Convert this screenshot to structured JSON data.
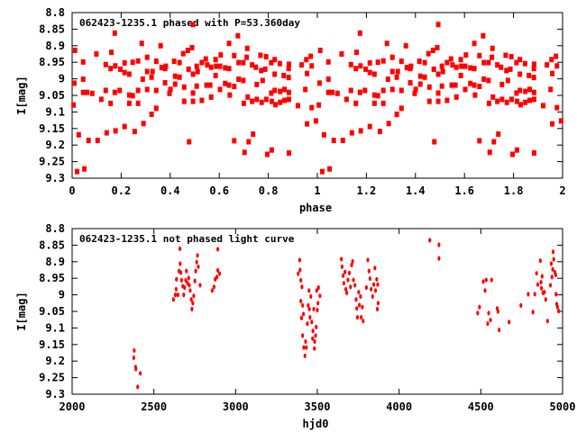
{
  "chart_data": [
    {
      "type": "scatter",
      "title": "062423-1235.1 phased with P=53.360day",
      "xlabel": "phase",
      "ylabel": "I[mag]",
      "xlim": [
        0,
        2
      ],
      "ylim": [
        8.8,
        9.3
      ],
      "y_inverted": true,
      "x_ticks": [
        "0",
        "0.2",
        "0.4",
        "0.6",
        "0.8",
        "1",
        "1.2",
        "1.4",
        "1.6",
        "1.8",
        "2"
      ],
      "y_ticks": [
        "8.8",
        "8.85",
        "8.9",
        "8.95",
        "9",
        "9.05",
        "9.1",
        "9.15",
        "9.2",
        "9.25",
        "9.3"
      ],
      "marker_color": "#ff0000",
      "phase_repeated_twice": true,
      "points": [
        [
          0.009,
          9.013
        ],
        [
          0.012,
          8.914
        ],
        [
          0.006,
          9.079
        ],
        [
          0.027,
          9.169
        ],
        [
          0.045,
          8.949
        ],
        [
          0.045,
          9.001
        ],
        [
          0.045,
          9.041
        ],
        [
          0.061,
          9.041
        ],
        [
          0.067,
          9.186
        ],
        [
          0.082,
          9.044
        ],
        [
          0.099,
          8.925
        ],
        [
          0.104,
          9.186
        ],
        [
          0.119,
          9.062
        ],
        [
          0.137,
          8.957
        ],
        [
          0.137,
          9.035
        ],
        [
          0.141,
          9.163
        ],
        [
          0.157,
          8.969
        ],
        [
          0.157,
          9.074
        ],
        [
          0.16,
          8.92
        ],
        [
          0.174,
          8.862
        ],
        [
          0.176,
          8.961
        ],
        [
          0.174,
          9.041
        ],
        [
          0.177,
          9.157
        ],
        [
          0.194,
          9.035
        ],
        [
          0.197,
          8.971
        ],
        [
          0.214,
          8.952
        ],
        [
          0.214,
          8.981
        ],
        [
          0.214,
          9.144
        ],
        [
          0.233,
          8.986
        ],
        [
          0.233,
          9.049
        ],
        [
          0.233,
          9.074
        ],
        [
          0.247,
          9.051
        ],
        [
          0.247,
          8.95
        ],
        [
          0.255,
          9.159
        ],
        [
          0.269,
          8.946
        ],
        [
          0.269,
          9.035
        ],
        [
          0.269,
          9.074
        ],
        [
          0.284,
          8.893
        ],
        [
          0.288,
          9.001
        ],
        [
          0.291,
          9.135
        ],
        [
          0.306,
          8.935
        ],
        [
          0.306,
          8.978
        ],
        [
          0.306,
          9.032
        ],
        [
          0.324,
          9.107
        ],
        [
          0.324,
          8.995
        ],
        [
          0.328,
          8.978
        ],
        [
          0.343,
          8.947
        ],
        [
          0.343,
          9.035
        ],
        [
          0.343,
          9.089
        ],
        [
          0.361,
          8.9
        ],
        [
          0.365,
          8.966
        ],
        [
          0.379,
          8.969
        ],
        [
          0.382,
          8.962
        ],
        [
          0.379,
          9.012
        ],
        [
          0.397,
          9.044
        ],
        [
          0.401,
          9.032
        ],
        [
          0.416,
          8.947
        ],
        [
          0.42,
          8.992
        ],
        [
          0.42,
          9.016
        ],
        [
          0.438,
          8.951
        ],
        [
          0.438,
          8.995
        ],
        [
          0.453,
          8.924
        ],
        [
          0.457,
          9.025
        ],
        [
          0.457,
          9.068
        ],
        [
          0.472,
          8.914
        ],
        [
          0.475,
          8.971
        ],
        [
          0.477,
          9.19
        ],
        [
          0.489,
          8.906
        ],
        [
          0.493,
          8.836
        ],
        [
          0.493,
          8.986
        ],
        [
          0.493,
          9.043
        ],
        [
          0.493,
          9.068
        ],
        [
          0.508,
          8.962
        ],
        [
          0.508,
          9.022
        ],
        [
          0.512,
          8.978
        ],
        [
          0.529,
          8.951
        ],
        [
          0.529,
          9.065
        ],
        [
          0.545,
          8.94
        ],
        [
          0.548,
          9.019
        ],
        [
          0.551,
          8.958
        ],
        [
          0.563,
          9.019
        ],
        [
          0.567,
          8.965
        ],
        [
          0.567,
          9.055
        ],
        [
          0.585,
          8.942
        ],
        [
          0.585,
          8.99
        ],
        [
          0.587,
          8.962
        ],
        [
          0.603,
          8.962
        ],
        [
          0.603,
          9.032
        ],
        [
          0.606,
          8.928
        ],
        [
          0.624,
          8.967
        ],
        [
          0.624,
          9.014
        ],
        [
          0.64,
          8.893
        ],
        [
          0.64,
          8.969
        ],
        [
          0.64,
          9.019
        ],
        [
          0.643,
          9.049
        ],
        [
          0.661,
          8.93
        ],
        [
          0.661,
          9.023
        ],
        [
          0.661,
          9.187
        ],
        [
          0.676,
          8.87
        ],
        [
          0.679,
          8.951
        ],
        [
          0.679,
          9.001
        ],
        [
          0.698,
          8.951
        ],
        [
          0.698,
          9.005
        ],
        [
          0.7,
          9.074
        ],
        [
          0.703,
          9.222
        ],
        [
          0.712,
          8.935
        ],
        [
          0.714,
          8.908
        ],
        [
          0.716,
          9.055
        ],
        [
          0.72,
          9.19
        ],
        [
          0.734,
          8.958
        ],
        [
          0.734,
          9.068
        ],
        [
          0.738,
          9.167
        ],
        [
          0.749,
          8.965
        ],
        [
          0.753,
          9.017
        ],
        [
          0.753,
          9.062
        ],
        [
          0.768,
          8.929
        ],
        [
          0.771,
          8.975
        ],
        [
          0.773,
          9.071
        ],
        [
          0.777,
          9.005
        ],
        [
          0.787,
          8.971
        ],
        [
          0.791,
          8.933
        ],
        [
          0.792,
          9.062
        ],
        [
          0.796,
          9.228
        ],
        [
          0.812,
          8.951
        ],
        [
          0.814,
          9.215
        ],
        [
          0.812,
          9.043
        ],
        [
          0.814,
          9.068
        ],
        [
          0.826,
          8.942
        ],
        [
          0.826,
          8.986
        ],
        [
          0.826,
          9.035
        ],
        [
          0.829,
          9.078
        ],
        [
          0.847,
          8.954
        ],
        [
          0.848,
          9.071
        ],
        [
          0.848,
          9.038
        ],
        [
          0.863,
          8.99
        ],
        [
          0.866,
          9.032
        ],
        [
          0.866,
          9.065
        ],
        [
          0.883,
          8.996
        ],
        [
          0.883,
          8.969
        ],
        [
          0.884,
          8.956
        ],
        [
          0.884,
          9.041
        ],
        [
          0.884,
          9.062
        ],
        [
          0.884,
          9.224
        ],
        [
          0.921,
          9.081
        ],
        [
          0.936,
          8.958
        ],
        [
          0.951,
          9.032
        ],
        [
          0.955,
          8.942
        ],
        [
          0.958,
          9.136
        ],
        [
          0.958,
          8.984
        ],
        [
          0.973,
          8.932
        ],
        [
          0.977,
          8.961
        ],
        [
          0.977,
          9.087
        ],
        [
          0.994,
          9.127
        ],
        [
          0.02,
          9.28
        ],
        [
          0.05,
          9.272
        ]
      ]
    },
    {
      "type": "scatter",
      "title": "062423-1235.1 not phased light curve",
      "xlabel": "hjd0",
      "ylabel": "I[mag]",
      "xlim": [
        2000,
        5000
      ],
      "ylim": [
        8.8,
        9.3
      ],
      "y_inverted": true,
      "x_ticks": [
        "2000",
        "2500",
        "3000",
        "3500",
        "4000",
        "4500",
        "5000"
      ],
      "y_ticks": [
        "8.8",
        "8.85",
        "8.9",
        "8.95",
        "9",
        "9.05",
        "9.1",
        "9.15",
        "9.2",
        "9.25",
        "9.3"
      ],
      "marker_color": "#ff0000",
      "points": [
        [
          2380,
          9.168
        ],
        [
          2377,
          9.19
        ],
        [
          2388,
          9.218
        ],
        [
          2390,
          9.224
        ],
        [
          2401,
          9.278
        ],
        [
          2417,
          9.237
        ],
        [
          2620,
          9.014
        ],
        [
          2631,
          9.0
        ],
        [
          2636,
          8.983
        ],
        [
          2638,
          8.953
        ],
        [
          2647,
          9.0
        ],
        [
          2654,
          8.928
        ],
        [
          2659,
          8.861
        ],
        [
          2661,
          8.906
        ],
        [
          2665,
          8.933
        ],
        [
          2670,
          8.956
        ],
        [
          2677,
          8.974
        ],
        [
          2683,
          9.0
        ],
        [
          2688,
          8.978
        ],
        [
          2695,
          8.956
        ],
        [
          2699,
          8.928
        ],
        [
          2706,
          8.965
        ],
        [
          2713,
          8.949
        ],
        [
          2717,
          8.971
        ],
        [
          2722,
          8.987
        ],
        [
          2729,
          9.014
        ],
        [
          2733,
          9.043
        ],
        [
          2738,
          9.025
        ],
        [
          2744,
          9.003
        ],
        [
          2751,
          8.958
        ],
        [
          2756,
          8.928
        ],
        [
          2762,
          8.901
        ],
        [
          2767,
          8.881
        ],
        [
          2772,
          8.915
        ],
        [
          2783,
          8.971
        ],
        [
          2857,
          8.987
        ],
        [
          2868,
          8.976
        ],
        [
          2875,
          8.953
        ],
        [
          2886,
          8.946
        ],
        [
          2891,
          8.862
        ],
        [
          2891,
          8.926
        ],
        [
          2902,
          8.936
        ],
        [
          3383,
          8.936
        ],
        [
          3392,
          8.895
        ],
        [
          3394,
          8.925
        ],
        [
          3399,
          8.956
        ],
        [
          3399,
          9.019
        ],
        [
          3403,
          9.07
        ],
        [
          3406,
          8.976
        ],
        [
          3410,
          9.032
        ],
        [
          3410,
          9.123
        ],
        [
          3415,
          9.058
        ],
        [
          3417,
          9.159
        ],
        [
          3424,
          9.184
        ],
        [
          3428,
          9.141
        ],
        [
          3433,
          9.159
        ],
        [
          3439,
          9.087
        ],
        [
          3444,
          9.032
        ],
        [
          3449,
          8.987
        ],
        [
          3451,
          9.043
        ],
        [
          3455,
          9.068
        ],
        [
          3460,
          9.005
        ],
        [
          3466,
          9.082
        ],
        [
          3471,
          9.132
        ],
        [
          3473,
          9.109
        ],
        [
          3478,
          9.043
        ],
        [
          3482,
          9.162
        ],
        [
          3484,
          9.141
        ],
        [
          3489,
          9.123
        ],
        [
          3493,
          9.097
        ],
        [
          3496,
          8.987
        ],
        [
          3500,
          9.046
        ],
        [
          3504,
          9.025
        ],
        [
          3507,
          8.978
        ],
        [
          3516,
          9.003
        ],
        [
          3647,
          8.892
        ],
        [
          3651,
          8.915
        ],
        [
          3658,
          8.942
        ],
        [
          3662,
          8.965
        ],
        [
          3669,
          8.931
        ],
        [
          3674,
          8.983
        ],
        [
          3680,
          8.994
        ],
        [
          3687,
          8.955
        ],
        [
          3696,
          8.934
        ],
        [
          3703,
          8.976
        ],
        [
          3710,
          8.91
        ],
        [
          3716,
          8.899
        ],
        [
          3721,
          8.955
        ],
        [
          3730,
          8.971
        ],
        [
          3737,
          9.014
        ],
        [
          3741,
          9.041
        ],
        [
          3745,
          9.068
        ],
        [
          3753,
          8.992
        ],
        [
          3757,
          9.031
        ],
        [
          3764,
          9.005
        ],
        [
          3768,
          9.068
        ],
        [
          3775,
          9.037
        ],
        [
          3780,
          9.079
        ],
        [
          3800,
          8.978
        ],
        [
          3809,
          8.895
        ],
        [
          3816,
          8.928
        ],
        [
          3822,
          8.951
        ],
        [
          3829,
          8.983
        ],
        [
          3838,
          9.005
        ],
        [
          3845,
          8.969
        ],
        [
          3852,
          8.919
        ],
        [
          3856,
          8.987
        ],
        [
          3863,
          8.953
        ],
        [
          3869,
          8.969
        ],
        [
          3872,
          9.025
        ],
        [
          3867,
          9.043
        ],
        [
          4188,
          8.835
        ],
        [
          4244,
          8.849
        ],
        [
          4244,
          8.89
        ],
        [
          4481,
          9.055
        ],
        [
          4492,
          9.037
        ],
        [
          4515,
          8.96
        ],
        [
          4526,
          8.987
        ],
        [
          4533,
          8.955
        ],
        [
          4542,
          9.087
        ],
        [
          4548,
          9.055
        ],
        [
          4559,
          9.076
        ],
        [
          4566,
          8.955
        ],
        [
          4600,
          9.041
        ],
        [
          4605,
          9.05
        ],
        [
          4612,
          9.106
        ],
        [
          4673,
          9.082
        ],
        [
          4745,
          9.032
        ],
        [
          4790,
          8.998
        ],
        [
          4819,
          9.052
        ],
        [
          4830,
          8.998
        ],
        [
          4841,
          8.935
        ],
        [
          4848,
          8.969
        ],
        [
          4864,
          8.897
        ],
        [
          4868,
          8.962
        ],
        [
          4871,
          8.98
        ],
        [
          4875,
          8.944
        ],
        [
          4880,
          8.994
        ],
        [
          4889,
          8.992
        ],
        [
          4897,
          9.014
        ],
        [
          4908,
          9.079
        ],
        [
          4926,
          8.971
        ],
        [
          4931,
          8.906
        ],
        [
          4935,
          8.946
        ],
        [
          4940,
          8.923
        ],
        [
          4942,
          8.87
        ],
        [
          4946,
          8.893
        ],
        [
          4953,
          8.932
        ],
        [
          4958,
          8.94
        ],
        [
          4960,
          8.998
        ],
        [
          4964,
          9.028
        ],
        [
          4969,
          9.037
        ],
        [
          4976,
          9.049
        ]
      ]
    }
  ]
}
